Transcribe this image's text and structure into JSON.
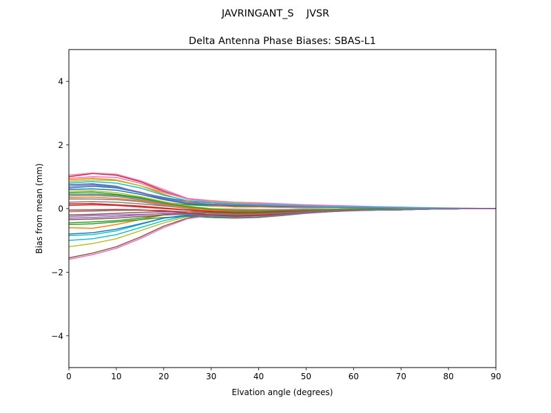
{
  "figure": {
    "suptitle": "JAVRINGANT_S    JVSR"
  },
  "chart_data": {
    "type": "line",
    "title": "Delta Antenna Phase Biases: SBAS-L1",
    "xlabel": "Elvation angle (degrees)",
    "ylabel": "Bias from mean (mm)",
    "xlim": [
      0,
      90
    ],
    "ylim": [
      -5,
      5
    ],
    "xticks": [
      0,
      10,
      20,
      30,
      40,
      50,
      60,
      70,
      80,
      90
    ],
    "xtick_labels": [
      "0",
      "10",
      "20",
      "30",
      "40",
      "50",
      "60",
      "70",
      "80",
      "90"
    ],
    "yticks": [
      -4,
      -2,
      0,
      2,
      4
    ],
    "ytick_labels": [
      "−4",
      "−2",
      "0",
      "2",
      "4"
    ],
    "grid": false,
    "legend": "none",
    "x": [
      0,
      5,
      10,
      15,
      20,
      25,
      30,
      35,
      40,
      45,
      50,
      55,
      60,
      65,
      70,
      75,
      80,
      85,
      90
    ],
    "series": [
      {
        "color": "#1f77b4",
        "values": [
          0.75,
          0.78,
          0.7,
          0.5,
          0.3,
          0.15,
          0.1,
          0.08,
          0.06,
          0.05,
          0.04,
          0.03,
          0.02,
          0.02,
          0.01,
          0.01,
          0.0,
          0.0,
          0.0
        ]
      },
      {
        "color": "#ff7f0e",
        "values": [
          -0.6,
          -0.62,
          -0.5,
          -0.35,
          -0.2,
          -0.1,
          -0.05,
          -0.05,
          -0.04,
          -0.03,
          -0.02,
          -0.02,
          -0.01,
          -0.01,
          0.0,
          0.0,
          0.0,
          0.0,
          0.0
        ]
      },
      {
        "color": "#2ca02c",
        "values": [
          0.5,
          0.52,
          0.45,
          0.35,
          0.2,
          0.12,
          0.08,
          0.06,
          0.05,
          0.04,
          0.03,
          0.03,
          0.02,
          0.02,
          0.01,
          0.01,
          0.0,
          0.0,
          0.0
        ]
      },
      {
        "color": "#d62728",
        "values": [
          1.0,
          1.1,
          1.05,
          0.85,
          0.55,
          0.3,
          0.2,
          0.15,
          0.15,
          0.12,
          0.1,
          0.08,
          0.06,
          0.05,
          0.04,
          0.02,
          0.01,
          0.0,
          0.0
        ]
      },
      {
        "color": "#9467bd",
        "values": [
          -0.3,
          -0.28,
          -0.25,
          -0.2,
          -0.15,
          -0.15,
          -0.2,
          -0.22,
          -0.2,
          -0.15,
          -0.1,
          -0.08,
          -0.05,
          -0.04,
          -0.03,
          -0.02,
          -0.01,
          0.0,
          0.0
        ]
      },
      {
        "color": "#8c564b",
        "values": [
          -1.55,
          -1.4,
          -1.2,
          -0.9,
          -0.55,
          -0.3,
          -0.2,
          -0.18,
          -0.15,
          -0.12,
          -0.08,
          -0.06,
          -0.05,
          -0.04,
          -0.03,
          -0.02,
          -0.01,
          0.0,
          0.0
        ]
      },
      {
        "color": "#e377c2",
        "values": [
          1.05,
          1.12,
          1.08,
          0.88,
          0.6,
          0.32,
          0.25,
          0.2,
          0.18,
          0.15,
          0.12,
          0.1,
          0.08,
          0.06,
          0.05,
          0.03,
          0.02,
          0.01,
          0.0
        ]
      },
      {
        "color": "#7f7f7f",
        "values": [
          0.3,
          0.3,
          0.28,
          0.22,
          0.1,
          0.0,
          -0.1,
          -0.15,
          -0.15,
          -0.12,
          -0.08,
          -0.05,
          -0.03,
          -0.02,
          -0.02,
          -0.01,
          -0.01,
          0.0,
          0.0
        ]
      },
      {
        "color": "#bcbd22",
        "values": [
          -1.2,
          -1.1,
          -0.95,
          -0.7,
          -0.45,
          -0.25,
          -0.2,
          -0.2,
          -0.18,
          -0.14,
          -0.1,
          -0.07,
          -0.05,
          -0.04,
          -0.03,
          -0.02,
          -0.01,
          0.0,
          0.0
        ]
      },
      {
        "color": "#17becf",
        "values": [
          -0.85,
          -0.82,
          -0.7,
          -0.5,
          -0.3,
          -0.2,
          -0.22,
          -0.25,
          -0.22,
          -0.18,
          -0.12,
          -0.08,
          -0.06,
          -0.05,
          -0.04,
          -0.02,
          -0.01,
          0.0,
          0.0
        ]
      },
      {
        "color": "#1f77b4",
        "values": [
          0.65,
          0.7,
          0.65,
          0.5,
          0.35,
          0.22,
          0.18,
          0.15,
          0.12,
          0.1,
          0.08,
          0.06,
          0.05,
          0.04,
          0.03,
          0.02,
          0.01,
          0.0,
          0.0
        ]
      },
      {
        "color": "#ff7f0e",
        "values": [
          0.9,
          0.95,
          0.9,
          0.72,
          0.45,
          0.22,
          0.1,
          0.05,
          0.05,
          0.04,
          0.03,
          0.03,
          0.02,
          0.02,
          0.01,
          0.01,
          0.0,
          0.0,
          0.0
        ]
      },
      {
        "color": "#2ca02c",
        "values": [
          -0.5,
          -0.48,
          -0.42,
          -0.35,
          -0.28,
          -0.25,
          -0.28,
          -0.3,
          -0.28,
          -0.22,
          -0.15,
          -0.1,
          -0.06,
          -0.05,
          -0.04,
          -0.02,
          -0.01,
          0.0,
          0.0
        ]
      },
      {
        "color": "#d62728",
        "values": [
          0.1,
          0.12,
          0.1,
          0.05,
          0.0,
          -0.05,
          -0.08,
          -0.1,
          -0.1,
          -0.08,
          -0.06,
          -0.05,
          -0.04,
          -0.03,
          -0.02,
          -0.01,
          -0.01,
          0.0,
          0.0
        ]
      },
      {
        "color": "#9467bd",
        "values": [
          0.4,
          0.42,
          0.38,
          0.28,
          0.15,
          0.05,
          0.0,
          -0.02,
          -0.03,
          -0.03,
          -0.02,
          -0.02,
          -0.01,
          -0.01,
          -0.01,
          0.0,
          0.0,
          0.0,
          0.0
        ]
      },
      {
        "color": "#8c564b",
        "values": [
          -0.2,
          -0.18,
          -0.15,
          -0.12,
          -0.1,
          -0.1,
          -0.12,
          -0.14,
          -0.13,
          -0.1,
          -0.07,
          -0.05,
          -0.03,
          -0.03,
          -0.02,
          -0.01,
          0.0,
          0.0,
          0.0
        ]
      },
      {
        "color": "#e377c2",
        "values": [
          -1.6,
          -1.45,
          -1.25,
          -0.95,
          -0.6,
          -0.32,
          -0.22,
          -0.2,
          -0.16,
          -0.12,
          -0.09,
          -0.06,
          -0.05,
          -0.04,
          -0.03,
          -0.02,
          -0.01,
          0.0,
          0.0
        ]
      },
      {
        "color": "#7f7f7f",
        "values": [
          0.2,
          0.22,
          0.2,
          0.15,
          0.08,
          0.02,
          -0.02,
          -0.05,
          -0.06,
          -0.05,
          -0.04,
          -0.03,
          -0.02,
          -0.02,
          -0.01,
          -0.01,
          0.0,
          0.0,
          0.0
        ]
      },
      {
        "color": "#bcbd22",
        "values": [
          0.85,
          0.9,
          0.88,
          0.72,
          0.5,
          0.3,
          0.22,
          0.18,
          0.15,
          0.12,
          0.1,
          0.08,
          0.06,
          0.05,
          0.04,
          0.02,
          0.01,
          0.0,
          0.0
        ]
      },
      {
        "color": "#17becf",
        "values": [
          -1.0,
          -0.95,
          -0.82,
          -0.6,
          -0.38,
          -0.22,
          -0.18,
          -0.18,
          -0.16,
          -0.12,
          -0.08,
          -0.06,
          -0.05,
          -0.04,
          -0.03,
          -0.02,
          -0.01,
          0.0,
          0.0
        ]
      },
      {
        "color": "#1f77b4",
        "values": [
          0.6,
          0.62,
          0.58,
          0.45,
          0.28,
          0.15,
          0.12,
          0.1,
          0.08,
          0.06,
          0.05,
          0.04,
          0.03,
          0.02,
          0.02,
          0.01,
          0.0,
          0.0,
          0.0
        ]
      },
      {
        "color": "#ff7f0e",
        "values": [
          0.35,
          0.36,
          0.32,
          0.25,
          0.12,
          0.02,
          -0.05,
          -0.08,
          -0.08,
          -0.06,
          -0.05,
          -0.04,
          -0.03,
          -0.02,
          -0.02,
          -0.01,
          0.0,
          0.0,
          0.0
        ]
      },
      {
        "color": "#2ca02c",
        "values": [
          -0.45,
          -0.42,
          -0.38,
          -0.3,
          -0.2,
          -0.15,
          -0.15,
          -0.16,
          -0.15,
          -0.12,
          -0.08,
          -0.06,
          -0.04,
          -0.03,
          -0.02,
          -0.01,
          -0.01,
          0.0,
          0.0
        ]
      },
      {
        "color": "#d62728",
        "values": [
          0.15,
          0.16,
          0.12,
          0.08,
          0.02,
          -0.04,
          -0.1,
          -0.12,
          -0.12,
          -0.1,
          -0.08,
          -0.06,
          -0.05,
          -0.04,
          -0.03,
          -0.02,
          -0.01,
          0.0,
          0.0
        ]
      },
      {
        "color": "#9467bd",
        "values": [
          0.7,
          0.74,
          0.68,
          0.52,
          0.32,
          0.18,
          0.14,
          0.12,
          0.1,
          0.08,
          0.06,
          0.05,
          0.04,
          0.03,
          0.02,
          0.01,
          0.01,
          0.0,
          0.0
        ]
      },
      {
        "color": "#8c564b",
        "values": [
          -0.35,
          -0.33,
          -0.3,
          -0.25,
          -0.2,
          -0.18,
          -0.2,
          -0.22,
          -0.2,
          -0.16,
          -0.11,
          -0.08,
          -0.05,
          -0.04,
          -0.03,
          -0.02,
          -0.01,
          0.0,
          0.0
        ]
      },
      {
        "color": "#e377c2",
        "values": [
          0.95,
          1.0,
          0.98,
          0.8,
          0.52,
          0.3,
          0.2,
          0.16,
          0.14,
          0.12,
          0.1,
          0.08,
          0.06,
          0.05,
          0.04,
          0.02,
          0.01,
          0.0,
          0.0
        ]
      },
      {
        "color": "#7f7f7f",
        "values": [
          -0.1,
          -0.08,
          -0.06,
          -0.05,
          -0.06,
          -0.1,
          -0.15,
          -0.18,
          -0.17,
          -0.14,
          -0.1,
          -0.07,
          -0.05,
          -0.04,
          -0.03,
          -0.02,
          -0.01,
          0.0,
          0.0
        ]
      },
      {
        "color": "#bcbd22",
        "values": [
          0.55,
          0.56,
          0.5,
          0.38,
          0.22,
          0.08,
          0.0,
          -0.04,
          -0.05,
          -0.05,
          -0.04,
          -0.03,
          -0.02,
          -0.02,
          -0.01,
          -0.01,
          0.0,
          0.0,
          0.0
        ]
      },
      {
        "color": "#17becf",
        "values": [
          0.8,
          0.85,
          0.8,
          0.65,
          0.42,
          0.25,
          0.18,
          0.14,
          0.12,
          0.1,
          0.08,
          0.06,
          0.05,
          0.04,
          0.03,
          0.02,
          0.01,
          0.0,
          0.0
        ]
      },
      {
        "color": "#1f77b4",
        "values": [
          -0.8,
          -0.76,
          -0.65,
          -0.48,
          -0.3,
          -0.22,
          -0.25,
          -0.28,
          -0.26,
          -0.2,
          -0.14,
          -0.09,
          -0.06,
          -0.05,
          -0.04,
          -0.02,
          -0.01,
          0.0,
          0.0
        ]
      },
      {
        "color": "#2ca02c",
        "values": [
          0.45,
          0.46,
          0.42,
          0.32,
          0.18,
          0.06,
          -0.02,
          -0.06,
          -0.07,
          -0.06,
          -0.05,
          -0.04,
          -0.03,
          -0.02,
          -0.02,
          -0.01,
          0.0,
          0.0,
          0.0
        ]
      },
      {
        "color": "#d62728",
        "values": [
          -0.05,
          -0.04,
          -0.03,
          -0.04,
          -0.08,
          -0.14,
          -0.2,
          -0.24,
          -0.22,
          -0.18,
          -0.13,
          -0.09,
          -0.06,
          -0.05,
          -0.04,
          -0.02,
          -0.01,
          0.0,
          0.0
        ]
      },
      {
        "color": "#9467bd",
        "values": [
          -0.25,
          -0.22,
          -0.2,
          -0.18,
          -0.16,
          -0.18,
          -0.24,
          -0.28,
          -0.26,
          -0.2,
          -0.14,
          -0.1,
          -0.07,
          -0.05,
          -0.04,
          -0.02,
          -0.01,
          0.0,
          0.0
        ]
      }
    ]
  }
}
